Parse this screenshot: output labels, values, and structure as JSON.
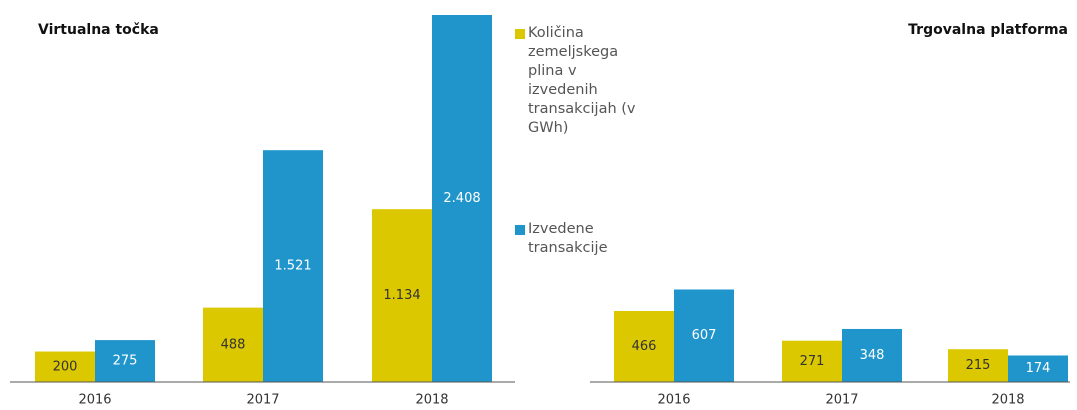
{
  "chart_data": [
    {
      "type": "bar",
      "title": "Virtualna točka",
      "categories": [
        "2016",
        "2017",
        "2018"
      ],
      "series": [
        {
          "name": "Količina zemeljskega plina v izvedenih transakcijah (v GWh)",
          "color": "#dcc800",
          "values": [
            200,
            488,
            1134
          ],
          "value_labels": [
            "200",
            "488",
            "1.134"
          ]
        },
        {
          "name": "Izvedene transakcije",
          "color": "#1f95cc",
          "values": [
            275,
            1521,
            2408
          ],
          "value_labels": [
            "275",
            "1.521",
            "2.408"
          ]
        }
      ]
    },
    {
      "type": "bar",
      "title": "Trgovalna platforma",
      "categories": [
        "2016",
        "2017",
        "2018"
      ],
      "series": [
        {
          "color": "#dcc800",
          "values": [
            466,
            271,
            215
          ]
        },
        {
          "color": "#1f95cc",
          "values": [
            607,
            348,
            174
          ]
        }
      ]
    }
  ]
}
